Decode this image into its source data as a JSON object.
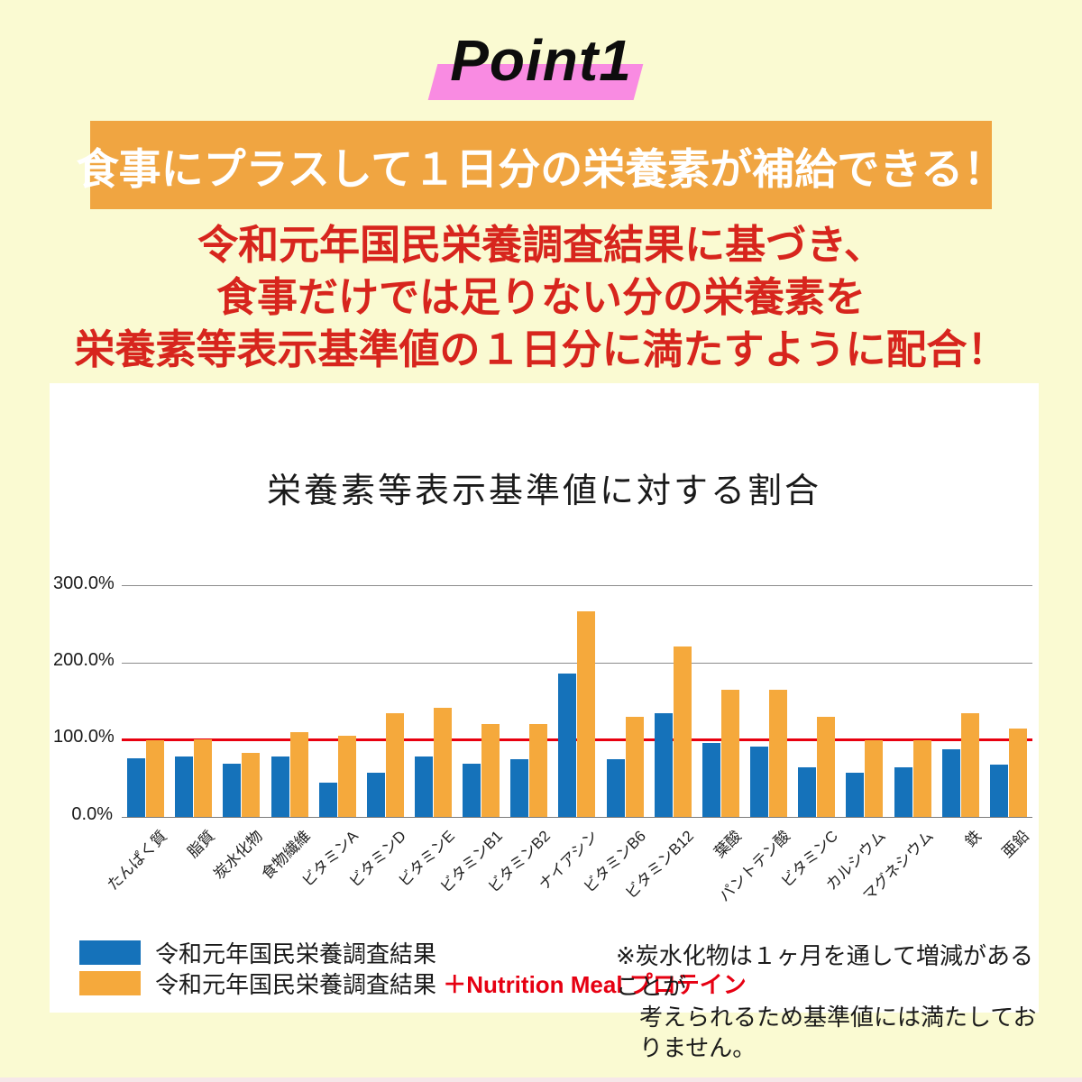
{
  "page": {
    "background": "#FAFAD2",
    "point_label": "Point1",
    "point_highlight_color": "#F98BE2"
  },
  "banner": {
    "text": "食事にプラスして１日分の栄養素が補給できる！",
    "bg_color": "#F0A541",
    "text_color": "#FFFFFF"
  },
  "lead": {
    "color": "#D7251D",
    "lines": [
      "令和元年国民栄養調査結果に基づき、",
      "食事だけでは足りない分の栄養素を",
      "栄養素等表示基準値の１日分に満たすように配合！"
    ]
  },
  "chart_data": {
    "type": "bar",
    "title": "栄養素等表示基準値に対する割合",
    "unit": "%",
    "ylim": [
      0,
      300
    ],
    "yticks": [
      "300.0%",
      "200.0%",
      "100.0%",
      "0.0%"
    ],
    "grid": "horizontal",
    "reference_line": {
      "value": 100,
      "color": "#E8000F"
    },
    "legend_position": "bottom-left",
    "categories": [
      "たんぱく質",
      "脂質",
      "炭水化物",
      "食物繊維",
      "ビタミンA",
      "ビタミンD",
      "ビタミンE",
      "ビタミンB1",
      "ビタミンB2",
      "ナイアシン",
      "ビタミンB6",
      "ビタミンB12",
      "葉酸",
      "パントテン酸",
      "ビタミンC",
      "カルシウム",
      "マグネシウム",
      "鉄",
      "亜鉛"
    ],
    "series": [
      {
        "name": "令和元年国民栄養調査結果",
        "color": "#1572BA",
        "values": [
          76,
          78,
          69,
          79,
          45,
          58,
          78,
          69,
          75,
          186,
          75,
          135,
          96,
          92,
          65,
          58,
          65,
          88,
          68
        ]
      },
      {
        "name": "令和元年国民栄養調査結果 ＋Nutrition Meal プロテイン",
        "color": "#F5A93C",
        "values": [
          100,
          101,
          83,
          110,
          106,
          135,
          142,
          121,
          121,
          267,
          130,
          222,
          165,
          165,
          130,
          100,
          100,
          135,
          115
        ]
      }
    ]
  },
  "legend": {
    "items": [
      {
        "label": "令和元年国民栄養調査結果",
        "suffix": "",
        "suffix_color": "#E60012"
      },
      {
        "label": "令和元年国民栄養調査結果",
        "suffix": "＋Nutrition Meal プロテイン",
        "suffix_color": "#E60012"
      }
    ]
  },
  "note": {
    "lines": [
      "※炭水化物は１ヶ月を通して増減があることが",
      "考えられるため基準値には満たしておりません。"
    ]
  }
}
